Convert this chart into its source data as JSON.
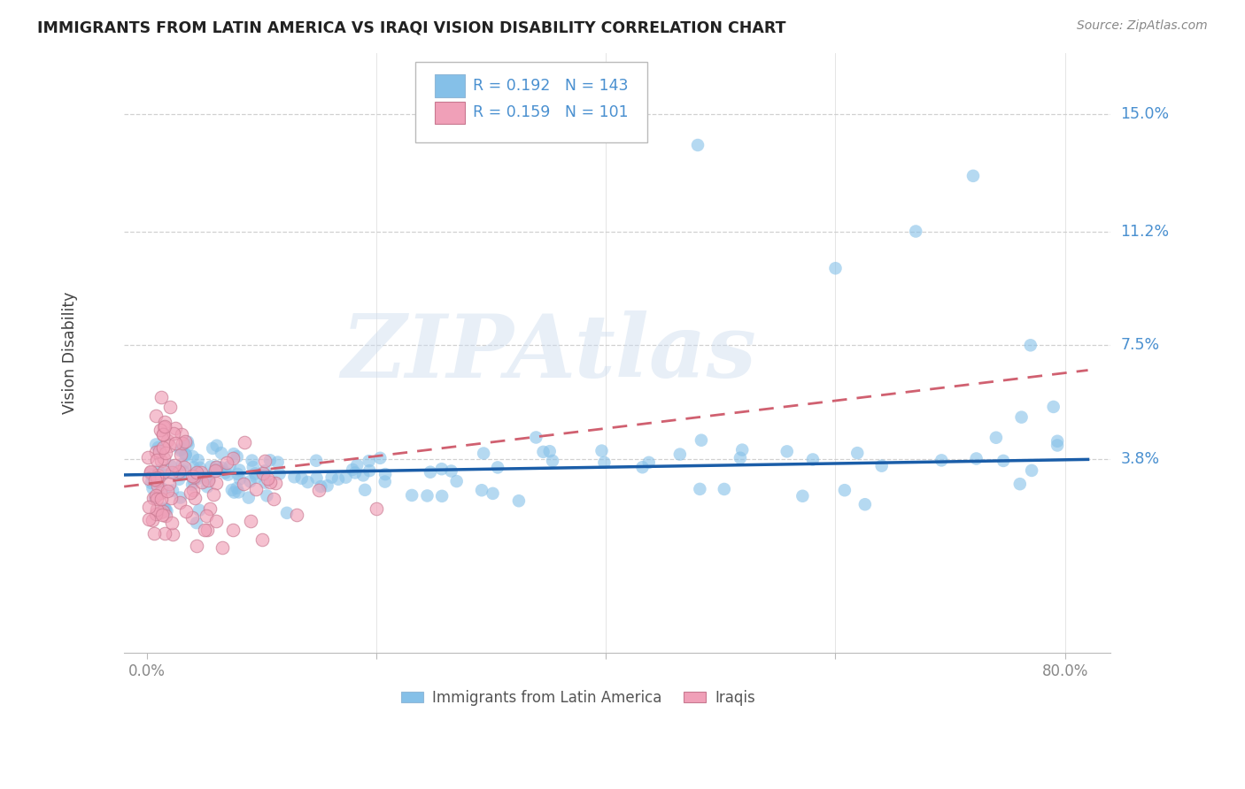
{
  "title": "IMMIGRANTS FROM LATIN AMERICA VS IRAQI VISION DISABILITY CORRELATION CHART",
  "source": "Source: ZipAtlas.com",
  "ylabel": "Vision Disability",
  "legend_label1": "Immigrants from Latin America",
  "legend_label2": "Iraqis",
  "R1": "0.192",
  "N1": "143",
  "R2": "0.159",
  "N2": "101",
  "y_ticks": [
    0.038,
    0.075,
    0.112,
    0.15
  ],
  "y_tick_labels": [
    "3.8%",
    "7.5%",
    "11.2%",
    "15.0%"
  ],
  "xlim": [
    -0.02,
    0.84
  ],
  "ylim": [
    -0.025,
    0.17
  ],
  "color_blue": "#85c0e8",
  "color_pink": "#f0a0b8",
  "color_blue_line": "#1a5da8",
  "color_pink_line": "#d06070",
  "color_grid": "#cccccc",
  "color_ytick_labels": "#4a90d0",
  "watermark_text": "ZIPAtlas",
  "seed": 123
}
